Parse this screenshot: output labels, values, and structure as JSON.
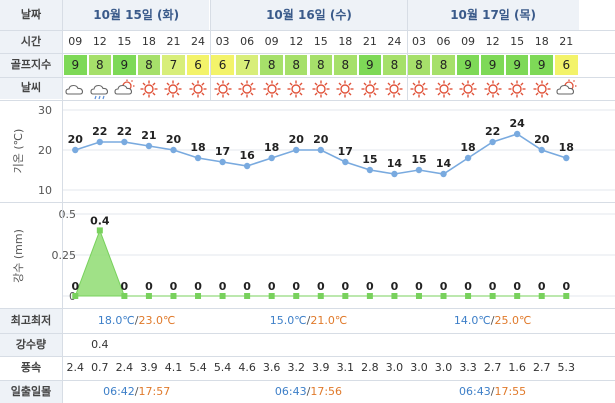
{
  "labels": {
    "date": "날짜",
    "time": "시간",
    "golf_index": "골프지수",
    "weather": "날씨",
    "temperature_axis": "기온 (℃)",
    "precip_axis": "강수 (mm)",
    "minmax": "최고최저",
    "precip_amount": "강수량",
    "wind_speed": "풍속",
    "sunrise_sunset": "일출일몰"
  },
  "days": [
    {
      "label": "10월 15일 (화)",
      "minmax_low": "18.0℃",
      "minmax_high": "23.0℃",
      "sunrise": "06:42",
      "sunset": "17:57"
    },
    {
      "label": "10월 16일 (수)",
      "minmax_low": "15.0℃",
      "minmax_high": "21.0℃",
      "sunrise": "06:43",
      "sunset": "17:56"
    },
    {
      "label": "10월 17일 (목)",
      "minmax_low": "14.0℃",
      "minmax_high": "25.0℃",
      "sunrise": "06:43",
      "sunset": "17:55"
    }
  ],
  "times": [
    "09",
    "12",
    "15",
    "18",
    "21",
    "24",
    "03",
    "06",
    "09",
    "12",
    "15",
    "18",
    "21",
    "24",
    "03",
    "06",
    "09",
    "12",
    "15",
    "18",
    "21"
  ],
  "golf_index": [
    "9",
    "8",
    "9",
    "8",
    "7",
    "6",
    "6",
    "7",
    "8",
    "8",
    "8",
    "8",
    "9",
    "8",
    "8",
    "8",
    "9",
    "9",
    "9",
    "9",
    "6"
  ],
  "colors": {
    "golf_9": "#7ed957",
    "golf_8": "#a6e06a",
    "golf_7": "#d8ee7a",
    "golf_6": "#f3f36a",
    "temp_line": "#79aadf",
    "precip_fill": "#8fdc72",
    "precip_point": "#78d15c",
    "high_temp": "#e07a2b",
    "low_temp": "#3d7fc8",
    "sun_icon": "#e0533a",
    "label_bg": "#eef2f7"
  },
  "weather_icons": [
    "cloudy-icon",
    "rain-cloud-icon",
    "partly-cloudy-icon",
    "sun-icon",
    "sun-icon",
    "sun-icon",
    "sun-icon",
    "sun-icon",
    "sun-icon",
    "sun-icon",
    "sun-icon",
    "sun-icon",
    "sun-icon",
    "sun-icon",
    "sun-icon",
    "sun-icon",
    "sun-icon",
    "sun-icon",
    "sun-icon",
    "sun-icon",
    "partly-cloudy-icon"
  ],
  "chart_data": [
    {
      "type": "line",
      "ylabel": "기온 (℃)",
      "x": [
        "09",
        "12",
        "15",
        "18",
        "21",
        "24",
        "03",
        "06",
        "09",
        "12",
        "15",
        "18",
        "21",
        "24",
        "03",
        "06",
        "09",
        "12",
        "15",
        "18",
        "21"
      ],
      "values": [
        20,
        22,
        22,
        21,
        20,
        18,
        17,
        16,
        18,
        20,
        20,
        17,
        15,
        14,
        15,
        14,
        18,
        22,
        24,
        20,
        18
      ],
      "ylim": [
        10,
        30
      ],
      "yticks": [
        "30",
        "20",
        "10"
      ],
      "grid": true
    },
    {
      "type": "area",
      "ylabel": "강수 (mm)",
      "x": [
        "09",
        "12",
        "15",
        "18",
        "21",
        "24",
        "03",
        "06",
        "09",
        "12",
        "15",
        "18",
        "21",
        "24",
        "03",
        "06",
        "09",
        "12",
        "15",
        "18",
        "21"
      ],
      "values": [
        0,
        0.4,
        0,
        0,
        0,
        0,
        0,
        0,
        0,
        0,
        0,
        0,
        0,
        0,
        0,
        0,
        0,
        0,
        0,
        0,
        0
      ],
      "value_labels": [
        "0",
        "0.4",
        "0",
        "0",
        "0",
        "0",
        "0",
        "0",
        "0",
        "0",
        "0",
        "0",
        "0",
        "0",
        "0",
        "0",
        "0",
        "0",
        "0",
        "0",
        "0"
      ],
      "ylim": [
        0,
        0.5
      ],
      "yticks": [
        "0.5",
        "0.25",
        "0"
      ],
      "grid": true
    }
  ],
  "precip_amount": [
    "",
    "0.4",
    "",
    "",
    "",
    "",
    "",
    "",
    "",
    "",
    "",
    "",
    "",
    "",
    "",
    "",
    "",
    "",
    "",
    "",
    ""
  ],
  "wind_speed": [
    "2.4",
    "0.7",
    "2.4",
    "3.9",
    "4.1",
    "5.4",
    "5.4",
    "4.6",
    "3.6",
    "3.2",
    "3.9",
    "3.1",
    "2.8",
    "3.0",
    "3.0",
    "3.0",
    "3.3",
    "2.7",
    "1.6",
    "2.7",
    "5.3"
  ]
}
